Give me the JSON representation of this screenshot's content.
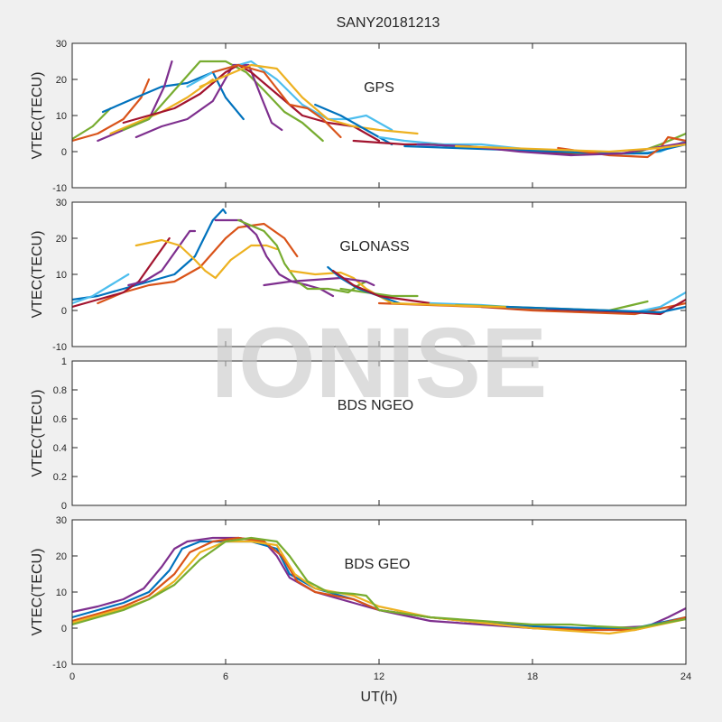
{
  "chart_data": [
    {
      "type": "line",
      "title": "SANY20181213",
      "panel_label": "GPS",
      "ylabel": "VTEC(TECU)",
      "xlim": [
        0,
        24
      ],
      "ylim": [
        -10,
        30
      ],
      "yticks": [
        -10,
        0,
        10,
        20,
        30
      ],
      "xticks": [
        0,
        6,
        12,
        18,
        24
      ],
      "show_xticklabels": false,
      "series": [
        {
          "color": "#77ac30",
          "x": [
            0,
            0.8,
            1.5
          ],
          "y": [
            3.5,
            7,
            12
          ]
        },
        {
          "color": "#d95319",
          "x": [
            0,
            1,
            2,
            2.7,
            3.0
          ],
          "y": [
            3,
            5,
            9,
            15,
            20
          ]
        },
        {
          "color": "#0072bd",
          "x": [
            1.2,
            2.5,
            3.5,
            4.5,
            5.5,
            6.0,
            6.7
          ],
          "y": [
            11,
            15,
            18,
            19,
            22,
            15,
            9
          ]
        },
        {
          "color": "#7e2f8e",
          "x": [
            1,
            2,
            3,
            3.6,
            3.9
          ],
          "y": [
            3,
            6,
            9,
            18,
            25
          ]
        },
        {
          "color": "#edb120",
          "x": [
            1.5,
            2.5,
            3.5,
            4.5,
            5.5
          ],
          "y": [
            5,
            8,
            11,
            15,
            20
          ]
        },
        {
          "color": "#77ac30",
          "x": [
            2,
            3,
            4,
            5,
            6,
            6.8,
            7.5,
            8.3,
            9.0,
            9.8
          ],
          "y": [
            6,
            9,
            17,
            25,
            25,
            22,
            17,
            11,
            8,
            3
          ]
        },
        {
          "color": "#7e2f8e",
          "x": [
            2.5,
            3.5,
            4.5,
            5.5,
            6.3,
            6.9,
            7.4,
            7.8,
            8.2
          ],
          "y": [
            4,
            7,
            9,
            14,
            24,
            24,
            15,
            8,
            6
          ]
        },
        {
          "color": "#4dbeee",
          "x": [
            4.5,
            5.5,
            6.5,
            7.0,
            8.0,
            9.0,
            10.0,
            10.8,
            11.5,
            12.5
          ],
          "y": [
            18,
            22,
            24,
            25,
            20,
            13,
            9,
            9,
            10,
            6
          ]
        },
        {
          "color": "#a2142f",
          "x": [
            2,
            3,
            4,
            5,
            6,
            6.5,
            7.0,
            8.0,
            9.0,
            10.0,
            11.0,
            12.0
          ],
          "y": [
            8,
            10,
            12,
            16,
            22,
            24,
            22,
            16,
            10,
            8,
            7,
            3
          ]
        },
        {
          "color": "#edb120",
          "x": [
            5,
            6,
            7,
            8,
            9,
            10,
            11,
            12,
            13.5
          ],
          "y": [
            18,
            21,
            24,
            23,
            15,
            9,
            7,
            6,
            5
          ]
        },
        {
          "color": "#d95319",
          "x": [
            5.5,
            6.5,
            7.5,
            8.5,
            9.2,
            9.8,
            10.5
          ],
          "y": [
            22,
            24,
            22,
            13,
            12,
            9,
            4
          ]
        },
        {
          "color": "#0072bd",
          "x": [
            9.5,
            10.5,
            11.5,
            12.5
          ],
          "y": [
            13,
            10,
            6,
            2
          ]
        },
        {
          "color": "#4dbeee",
          "x": [
            12,
            13,
            14.5,
            16,
            18,
            20,
            22,
            23,
            24
          ],
          "y": [
            4,
            3,
            2,
            2,
            0.5,
            -0.5,
            -0.5,
            0,
            3
          ]
        },
        {
          "color": "#a2142f",
          "x": [
            11,
            12,
            13,
            14,
            15,
            16,
            17,
            18,
            19,
            20
          ],
          "y": [
            3,
            2.5,
            2,
            2,
            1.5,
            1,
            0.5,
            0,
            -0.5,
            -0.5
          ]
        },
        {
          "color": "#77ac30",
          "x": [
            14,
            16,
            18,
            20,
            22,
            23,
            24
          ],
          "y": [
            2,
            1,
            0.5,
            -0.5,
            -0.5,
            2,
            5
          ]
        },
        {
          "color": "#0072bd",
          "x": [
            13,
            15,
            17,
            19,
            21,
            22.5,
            24
          ],
          "y": [
            1.5,
            1,
            0.5,
            0,
            -0.5,
            -0.5,
            2
          ]
        },
        {
          "color": "#d95319",
          "x": [
            19,
            21,
            22.5,
            23.0,
            23.3,
            24
          ],
          "y": [
            1,
            -1,
            -1.5,
            1,
            4,
            3
          ]
        },
        {
          "color": "#7e2f8e",
          "x": [
            13.5,
            15.5,
            17.5,
            19.5,
            21.5,
            24
          ],
          "y": [
            2,
            1.5,
            0,
            -1,
            -0.5,
            2.5
          ]
        },
        {
          "color": "#edb120",
          "x": [
            15,
            17,
            19,
            21,
            23,
            24
          ],
          "y": [
            1.5,
            1,
            0.5,
            0,
            1,
            2
          ]
        }
      ]
    },
    {
      "type": "line",
      "panel_label": "GLONASS",
      "ylabel": "VTEC(TECU)",
      "xlim": [
        0,
        24
      ],
      "ylim": [
        -10,
        30
      ],
      "yticks": [
        -10,
        0,
        10,
        20,
        30
      ],
      "xticks": [
        0,
        6,
        12,
        18,
        24
      ],
      "show_xticklabels": false,
      "series": [
        {
          "color": "#0072bd",
          "x": [
            0,
            1,
            2,
            3,
            4,
            4.8,
            5.5,
            5.9,
            6.0
          ],
          "y": [
            3,
            4,
            6,
            8,
            10,
            15,
            25,
            28,
            27
          ]
        },
        {
          "color": "#4dbeee",
          "x": [
            0,
            0.8,
            1.5,
            2.2
          ],
          "y": [
            2,
            4,
            7,
            10
          ]
        },
        {
          "color": "#d95319",
          "x": [
            1,
            2,
            3,
            4,
            5,
            6,
            6.5,
            7.5,
            8.3,
            8.8
          ],
          "y": [
            2,
            5,
            7,
            8,
            12,
            20,
            23,
            24,
            20,
            15
          ]
        },
        {
          "color": "#a2142f",
          "x": [
            0,
            1,
            2,
            2.6,
            3.1,
            3.5,
            3.8
          ],
          "y": [
            1,
            3,
            5,
            8,
            13,
            17,
            20
          ]
        },
        {
          "color": "#7e2f8e",
          "x": [
            2.2,
            2.8,
            3.5,
            4.1,
            4.6,
            4.8
          ],
          "y": [
            7,
            8,
            11,
            17,
            22,
            22
          ]
        },
        {
          "color": "#edb120",
          "x": [
            2.5,
            3.5,
            4.2,
            4.8,
            5.2,
            5.6,
            6.2,
            7.0,
            7.6,
            8.0
          ],
          "y": [
            18,
            19.5,
            18,
            14,
            11,
            9,
            14,
            18,
            18,
            17
          ]
        },
        {
          "color": "#7e2f8e",
          "x": [
            5.6,
            6.6,
            7.2,
            7.6,
            8.1,
            8.6,
            9.2,
            9.7,
            10.2
          ],
          "y": [
            25,
            25,
            21,
            15,
            10,
            8,
            7,
            6,
            4
          ]
        },
        {
          "color": "#77ac30",
          "x": [
            6.5,
            7.5,
            8.0,
            8.3,
            8.8,
            9.2,
            10.0,
            10.8,
            11.2,
            11.5
          ],
          "y": [
            25,
            22,
            18,
            13,
            8,
            6,
            6,
            5,
            7,
            8
          ]
        },
        {
          "color": "#edb120",
          "x": [
            8.5,
            9.5,
            10.5,
            11.0,
            11.5,
            12.0,
            12.5
          ],
          "y": [
            11,
            10,
            10.5,
            9,
            6,
            4,
            2
          ]
        },
        {
          "color": "#7e2f8e",
          "x": [
            7.5,
            8.5,
            9.5,
            10.5,
            11.5,
            11.8
          ],
          "y": [
            7,
            8,
            8.5,
            9,
            8,
            7
          ]
        },
        {
          "color": "#77ac30",
          "x": [
            10.5,
            11.5,
            12.5,
            13.5
          ],
          "y": [
            6,
            5,
            4,
            4
          ]
        },
        {
          "color": "#0072bd",
          "x": [
            10,
            10.5,
            11.2,
            12,
            12.8
          ],
          "y": [
            12,
            9,
            6,
            4,
            2
          ]
        },
        {
          "color": "#a2142f",
          "x": [
            10.2,
            11,
            12,
            13,
            14
          ],
          "y": [
            11,
            7,
            4,
            3,
            2
          ]
        },
        {
          "color": "#d95319",
          "x": [
            12,
            14,
            16,
            18,
            20,
            22,
            24
          ],
          "y": [
            2,
            1.5,
            1,
            0,
            -0.5,
            -1,
            2
          ]
        },
        {
          "color": "#4dbeee",
          "x": [
            14,
            16,
            18,
            20,
            22,
            23,
            24
          ],
          "y": [
            2,
            1.5,
            0.5,
            0,
            -0.5,
            1,
            5
          ]
        },
        {
          "color": "#77ac30",
          "x": [
            15,
            17,
            19,
            21,
            22.5
          ],
          "y": [
            1.5,
            1,
            0.5,
            0,
            2.5
          ]
        },
        {
          "color": "#a2142f",
          "x": [
            16,
            18,
            20,
            22,
            23,
            24
          ],
          "y": [
            1,
            0.5,
            0,
            -0.5,
            -1,
            3
          ]
        },
        {
          "color": "#edb120",
          "x": [
            12.5,
            14.5,
            16.5,
            18.5
          ],
          "y": [
            2,
            1.5,
            1,
            0.5
          ]
        },
        {
          "color": "#0072bd",
          "x": [
            17,
            19,
            21,
            23,
            24
          ],
          "y": [
            1,
            0.5,
            0,
            -0.5,
            1
          ]
        }
      ]
    },
    {
      "type": "line",
      "panel_label": "BDS NGEO",
      "ylabel": "VTEC(TECU)",
      "xlim": [
        0,
        24
      ],
      "ylim": [
        0,
        1
      ],
      "yticks": [
        0,
        0.2,
        0.4,
        0.6,
        0.8,
        1
      ],
      "xticks": [
        0,
        6,
        12,
        18,
        24
      ],
      "show_xticklabels": false,
      "series": []
    },
    {
      "type": "line",
      "panel_label": "BDS GEO",
      "ylabel": "VTEC(TECU)",
      "xlabel": "UT(h)",
      "xlim": [
        0,
        24
      ],
      "ylim": [
        -10,
        30
      ],
      "yticks": [
        -10,
        0,
        10,
        20,
        30
      ],
      "xticks": [
        0,
        6,
        12,
        18,
        24
      ],
      "show_xticklabels": true,
      "series": [
        {
          "color": "#7e2f8e",
          "x": [
            0,
            1,
            2,
            2.8,
            3.5,
            4.0,
            4.5,
            5.5,
            6.5,
            7.5,
            8.0,
            8.5,
            9.5,
            11,
            12,
            14,
            16,
            18,
            20,
            21,
            22.5,
            23.3,
            24
          ],
          "y": [
            4.5,
            6,
            8,
            11,
            17,
            22,
            24,
            25,
            25,
            24,
            20,
            14,
            10,
            7,
            5,
            2,
            1,
            0,
            -0.5,
            0,
            0.5,
            3,
            5.5
          ]
        },
        {
          "color": "#0072bd",
          "x": [
            0,
            1,
            2,
            3,
            3.8,
            4.3,
            5.0,
            6.0,
            7.0,
            8.0,
            8.5,
            9.5,
            11,
            12,
            14,
            16,
            18,
            20,
            22,
            24
          ],
          "y": [
            3,
            5,
            7,
            10,
            16,
            22,
            24,
            24,
            24,
            22,
            15,
            11,
            8,
            5,
            3,
            1.5,
            0.5,
            0,
            0,
            3
          ]
        },
        {
          "color": "#d95319",
          "x": [
            0,
            1,
            2,
            3,
            4,
            4.6,
            5.5,
            6.5,
            7.5,
            8.2,
            8.8,
            9.5,
            11,
            12,
            14,
            16,
            18,
            20,
            22,
            24
          ],
          "y": [
            2,
            4,
            6,
            9,
            15,
            21,
            24,
            25,
            24,
            20,
            13,
            10,
            8,
            5,
            3,
            1.5,
            0,
            -0.5,
            -0.5,
            3
          ]
        },
        {
          "color": "#edb120",
          "x": [
            0,
            1,
            2,
            3,
            4,
            5,
            6,
            7,
            8,
            8.7,
            9.5,
            11,
            12,
            14,
            16,
            18,
            20,
            21,
            22,
            24
          ],
          "y": [
            1.5,
            3.5,
            5.5,
            8,
            13,
            21,
            24,
            24,
            23,
            15,
            11,
            9,
            6,
            3,
            1.5,
            0,
            -1,
            -1.5,
            -0.5,
            2.5
          ]
        },
        {
          "color": "#77ac30",
          "x": [
            0,
            1,
            2,
            3,
            4,
            5,
            6,
            7,
            8,
            8.5,
            9.2,
            10,
            11,
            11.5,
            12,
            14,
            16,
            18,
            19.5,
            20.5,
            22,
            24
          ],
          "y": [
            1,
            3,
            5,
            8,
            12,
            19,
            24,
            25,
            24,
            20,
            13,
            10,
            9.5,
            9,
            5,
            3,
            2,
            1,
            1,
            0.5,
            0,
            2.5
          ]
        }
      ]
    }
  ],
  "watermark": "IONISE"
}
